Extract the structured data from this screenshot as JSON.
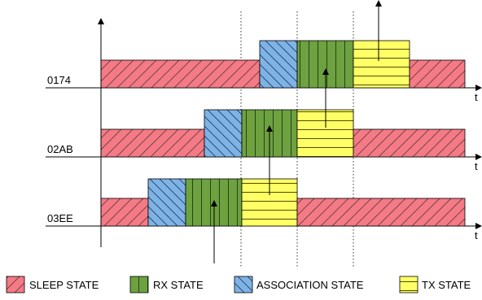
{
  "rows": [
    {
      "id": "0174",
      "segments": [
        {
          "state": "sleep",
          "start": 0,
          "end": 195
        },
        {
          "state": "association",
          "start": 195,
          "end": 241
        },
        {
          "state": "rx",
          "start": 241,
          "end": 310
        },
        {
          "state": "tx",
          "start": 310,
          "end": 379
        },
        {
          "state": "sleep",
          "start": 379,
          "end": 447
        }
      ]
    },
    {
      "id": "02AB",
      "segments": [
        {
          "state": "sleep",
          "start": 0,
          "end": 127
        },
        {
          "state": "association",
          "start": 127,
          "end": 173
        },
        {
          "state": "rx",
          "start": 173,
          "end": 241
        },
        {
          "state": "tx",
          "start": 241,
          "end": 310
        },
        {
          "state": "sleep",
          "start": 310,
          "end": 447
        }
      ]
    },
    {
      "id": "03EE",
      "segments": [
        {
          "state": "sleep",
          "start": 0,
          "end": 58
        },
        {
          "state": "association",
          "start": 58,
          "end": 104
        },
        {
          "state": "rx",
          "start": 104,
          "end": 173
        },
        {
          "state": "tx",
          "start": 173,
          "end": 241
        },
        {
          "state": "sleep",
          "start": 241,
          "end": 447
        }
      ]
    }
  ],
  "axis_label": "t",
  "legend": [
    {
      "state": "sleep",
      "label": "SLEEP STATE"
    },
    {
      "state": "rx",
      "label": "RX STATE"
    },
    {
      "state": "association",
      "label": "ASSOCIATION STATE"
    },
    {
      "state": "tx",
      "label": "TX STATE"
    }
  ],
  "colors": {
    "sleep": "#f47a85",
    "rx": "#6ea140",
    "association": "#7fb3e6",
    "tx": "#ffff66",
    "line": "#000000"
  }
}
